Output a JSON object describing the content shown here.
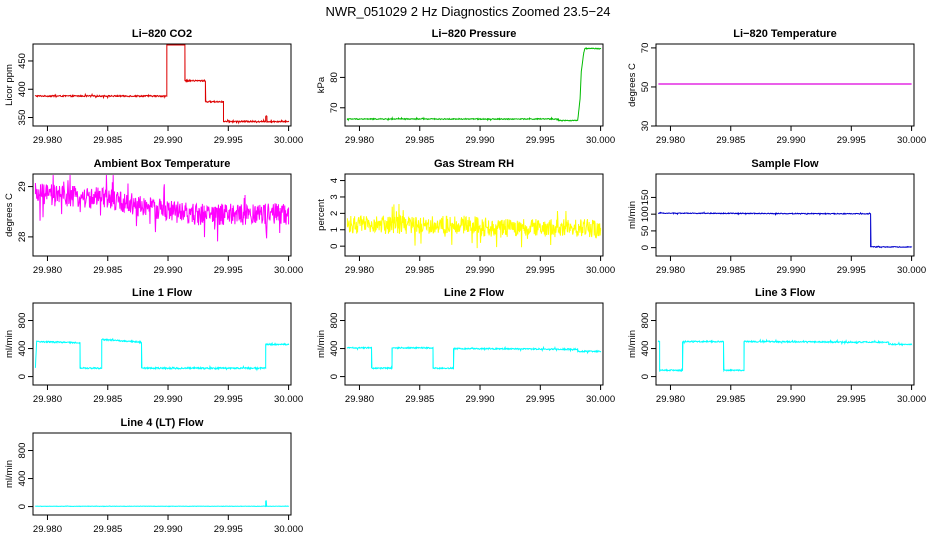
{
  "title": "NWR_051029  2 Hz Diagnostics Zoomed 23.5−24",
  "chart_data": [
    {
      "type": "line",
      "title": "Li−820 CO2",
      "ylabel": "Licor ppm",
      "color": "#dd0000",
      "xlim": [
        29.9788,
        30.0002
      ],
      "ylim": [
        335,
        480
      ],
      "xticks": [
        "29.980",
        "29.985",
        "29.990",
        "29.995",
        "30.000"
      ],
      "yticks": [
        350,
        400,
        450
      ],
      "noise": 1.2,
      "series": [
        {
          "x": [
            29.979,
            29.9899,
            29.9899,
            29.9914,
            29.9914,
            29.9931,
            29.9931,
            29.9946,
            29.9946,
            29.9981,
            29.9981,
            29.9982,
            29.9982,
            30.0
          ],
          "y": [
            388,
            388,
            482,
            482,
            415,
            415,
            378,
            378,
            343,
            343,
            352,
            352,
            343,
            343
          ]
        }
      ]
    },
    {
      "type": "line",
      "title": "Li−820 Pressure",
      "ylabel": "kPa",
      "color": "#00bb00",
      "xlim": [
        29.9788,
        30.0002
      ],
      "ylim": [
        64,
        91
      ],
      "xticks": [
        "29.980",
        "29.985",
        "29.990",
        "29.995",
        "30.000"
      ],
      "yticks": [
        70,
        80
      ],
      "noise": 0.15,
      "series": [
        {
          "x": [
            29.979,
            29.9965,
            29.9965,
            29.9981,
            29.9983,
            29.9984,
            29.9986,
            29.9987,
            30.0
          ],
          "y": [
            66.3,
            66.3,
            65.8,
            65.8,
            73,
            82,
            88,
            89.5,
            89.5
          ]
        }
      ]
    },
    {
      "type": "line",
      "title": "Li−820 Temperature",
      "ylabel": "degrees C",
      "color": "#dd00dd",
      "xlim": [
        29.9788,
        30.0002
      ],
      "ylim": [
        30,
        72
      ],
      "xticks": [
        "29.980",
        "29.985",
        "29.990",
        "29.995",
        "30.000"
      ],
      "yticks": [
        30,
        50,
        70
      ],
      "noise": 0,
      "series": [
        {
          "x": [
            29.979,
            30.0
          ],
          "y": [
            51.5,
            51.5
          ]
        }
      ]
    },
    {
      "type": "line",
      "title": "Ambient Box Temperature",
      "ylabel": "degrees C",
      "color": "#ff00ff",
      "xlim": [
        29.9788,
        30.0002
      ],
      "ylim": [
        27.62,
        29.25
      ],
      "xticks": [
        "29.980",
        "29.985",
        "29.990",
        "29.995",
        "30.000"
      ],
      "yticks": [
        28.0,
        29.0
      ],
      "noise": 0.22,
      "series": [
        {
          "x": [
            29.979,
            29.985,
            29.988,
            29.992,
            30.0
          ],
          "y": [
            28.85,
            28.75,
            28.6,
            28.45,
            28.45
          ]
        }
      ]
    },
    {
      "type": "line",
      "title": "Gas Stream RH",
      "ylabel": "percent",
      "color": "#ffff00",
      "xlim": [
        29.9788,
        30.0002
      ],
      "ylim": [
        -0.6,
        4.4
      ],
      "xticks": [
        "29.980",
        "29.985",
        "29.990",
        "29.995",
        "30.000"
      ],
      "yticks": [
        0,
        1,
        2,
        3,
        4
      ],
      "noise": 0.55,
      "series": [
        {
          "x": [
            29.979,
            29.99,
            29.9901,
            30.0
          ],
          "y": [
            1.3,
            1.3,
            1.1,
            1.1
          ]
        }
      ]
    },
    {
      "type": "line",
      "title": "Sample Flow",
      "ylabel": "ml/min",
      "color": "#0000cc",
      "xlim": [
        29.9788,
        30.0002
      ],
      "ylim": [
        -25,
        220
      ],
      "xticks": [
        "29.980",
        "29.985",
        "29.990",
        "29.995",
        "30.000"
      ],
      "yticks": [
        0,
        50,
        100,
        150
      ],
      "noise": 1.2,
      "series": [
        {
          "x": [
            29.979,
            29.9966,
            29.9966,
            30.0
          ],
          "y": [
            103,
            101,
            2,
            2
          ]
        }
      ]
    },
    {
      "type": "line",
      "title": "Line 1 Flow",
      "ylabel": "ml/min",
      "color": "#00ffff",
      "xlim": [
        29.9788,
        30.0002
      ],
      "ylim": [
        -120,
        1050
      ],
      "xticks": [
        "29.980",
        "29.985",
        "29.990",
        "29.995",
        "30.000"
      ],
      "yticks": [
        0,
        400,
        800
      ],
      "noise": 10,
      "series": [
        {
          "x": [
            29.979,
            29.9791,
            29.9827,
            29.9827,
            29.9845,
            29.9845,
            29.9878,
            29.9878,
            29.9981,
            29.9981,
            30.0
          ],
          "y": [
            130,
            500,
            480,
            120,
            120,
            530,
            490,
            120,
            120,
            460,
            460
          ]
        }
      ]
    },
    {
      "type": "line",
      "title": "Line 2 Flow",
      "ylabel": "ml/min",
      "color": "#00ffff",
      "xlim": [
        29.9788,
        30.0002
      ],
      "ylim": [
        -120,
        1050
      ],
      "xticks": [
        "29.980",
        "29.985",
        "29.990",
        "29.995",
        "30.000"
      ],
      "yticks": [
        0,
        400,
        800
      ],
      "noise": 9,
      "series": [
        {
          "x": [
            29.979,
            29.981,
            29.981,
            29.9827,
            29.9827,
            29.9861,
            29.9861,
            29.9878,
            29.9878,
            29.9981,
            29.9981,
            30.0
          ],
          "y": [
            410,
            410,
            120,
            120,
            410,
            410,
            120,
            120,
            400,
            390,
            360,
            360
          ]
        }
      ]
    },
    {
      "type": "line",
      "title": "Line 3 Flow",
      "ylabel": "ml/min",
      "color": "#00ffff",
      "xlim": [
        29.9788,
        30.0002
      ],
      "ylim": [
        -120,
        1050
      ],
      "xticks": [
        "29.980",
        "29.985",
        "29.990",
        "29.995",
        "30.000"
      ],
      "yticks": [
        0,
        400,
        800
      ],
      "noise": 9,
      "series": [
        {
          "x": [
            29.979,
            29.9791,
            29.9791,
            29.981,
            29.981,
            29.9844,
            29.9844,
            29.9861,
            29.9861,
            29.9981,
            29.9981,
            30.0
          ],
          "y": [
            500,
            500,
            90,
            90,
            500,
            500,
            90,
            90,
            500,
            490,
            460,
            460
          ]
        }
      ]
    },
    {
      "type": "line",
      "title": "Line 4 (LT) Flow",
      "ylabel": "ml/min",
      "color": "#00ffff",
      "xlim": [
        29.9788,
        30.0002
      ],
      "ylim": [
        -120,
        1050
      ],
      "xticks": [
        "29.980",
        "29.985",
        "29.990",
        "29.995",
        "30.000"
      ],
      "yticks": [
        0,
        400,
        800
      ],
      "noise": 2,
      "series": [
        {
          "x": [
            29.979,
            29.9981,
            29.9981,
            29.99815,
            29.99815,
            30.0
          ],
          "y": [
            5,
            5,
            80,
            80,
            5,
            5
          ]
        }
      ]
    }
  ]
}
